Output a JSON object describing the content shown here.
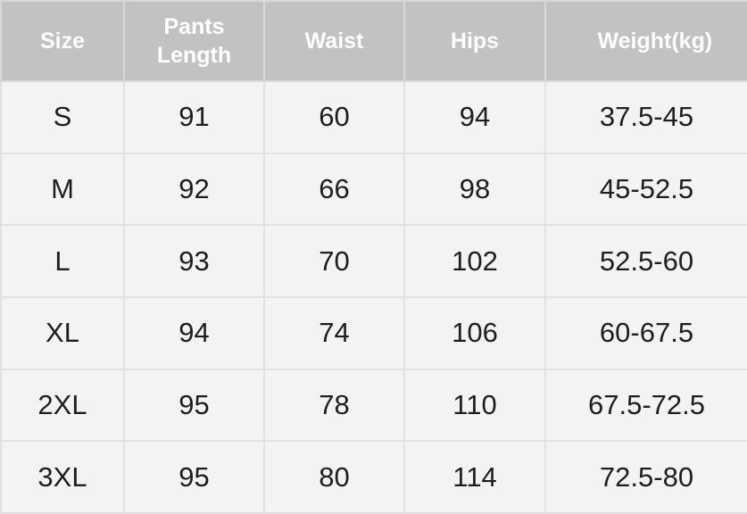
{
  "table": {
    "header": [
      "Size",
      "Pants Length",
      "Waist",
      "Hips",
      "Weight(kg)"
    ],
    "rows": [
      [
        "S",
        "91",
        "60",
        "94",
        "37.5-45"
      ],
      [
        "M",
        "92",
        "66",
        "98",
        "45-52.5"
      ],
      [
        "L",
        "93",
        "70",
        "102",
        "52.5-60"
      ],
      [
        "XL",
        "94",
        "74",
        "106",
        "60-67.5"
      ],
      [
        "2XL",
        "95",
        "78",
        "110",
        "67.5-72.5"
      ],
      [
        "3XL",
        "95",
        "80",
        "114",
        "72.5-80"
      ]
    ]
  }
}
